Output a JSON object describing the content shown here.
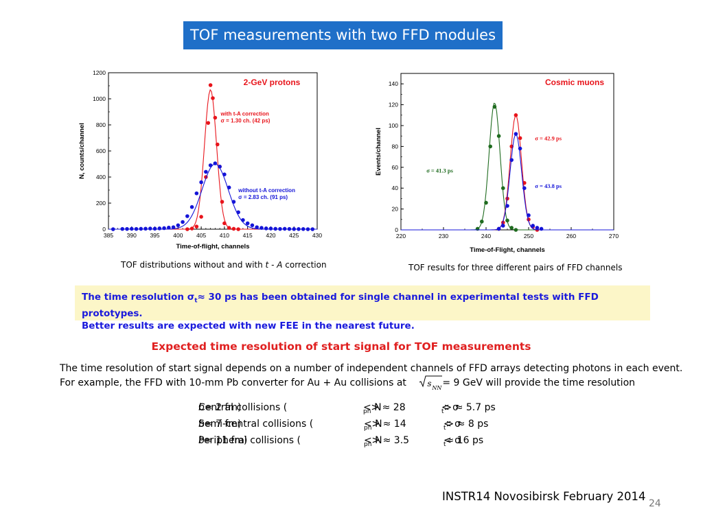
{
  "slide": {
    "title": "TOF measurements with two FFD modules",
    "caption_left_pre": "TOF distributions without and with ",
    "caption_left_t": "t",
    "caption_left_mid": " - ",
    "caption_left_a": "A",
    "caption_left_post": " correction",
    "caption_right": "TOF results for three different pairs of FFD channels",
    "note_line1_pre": "The time resolution σ",
    "note_sub": "t",
    "note_line1_post": "≈ 30 ps has been obtained for single channel in experimental tests with FFD prototypes.",
    "note_line2": "Better results are expected with new FEE in the nearest future.",
    "heading": "Expected time resolution of start signal for TOF measurements",
    "body_line1": "The time resolution of start signal depends on a number of independent channels of FFD arrays detecting photons in each event.",
    "body_line2_pre": "For example, the FFD with 10-mm Pb converter for Au + Au collisions at",
    "body_line2_post": "= 9 GeV will provide the time resolution",
    "sqrt_s": "s",
    "sqrt_sub": "NN",
    "cases": [
      {
        "name_pre": "Central collisions (",
        "b": "b",
        "name_post": " = 2 fm)",
        "nph": "< N",
        "nph_sub": "ph",
        "nph_val": " > ≈ 28",
        "sigma": "< σ",
        "sigma_sub": "t",
        "sigma_val": " > ≈ 5.7 ps"
      },
      {
        "name_pre": "Semi-central collisions (",
        "b": "b",
        "name_post": " = 7 fm)",
        "nph": "< N",
        "nph_sub": "ph",
        "nph_val": " > ≈ 14",
        "sigma": "< σ",
        "sigma_sub": "t",
        "sigma_val": " > ≈ 8 ps"
      },
      {
        "name_pre": "Peripheral collisions (",
        "b": "b",
        "name_post": " = 11 fm)",
        "nph": "< N",
        "nph_sub": "ph",
        "nph_val": " > ≈ 3.5",
        "sigma": "< σ",
        "sigma_sub": "t",
        "sigma_val": " ≈ 16 ps"
      }
    ],
    "footer": "INSTR14 Novosibirsk February 2014",
    "page_number": "24"
  },
  "chart_data": [
    {
      "type": "scatter",
      "title": "2-GeV protons",
      "xlabel": "Time-of-flight, channels",
      "ylabel": "N, counts/channel",
      "xlim": [
        385,
        430
      ],
      "ylim": [
        0,
        1200
      ],
      "xticks": [
        385,
        390,
        395,
        400,
        405,
        410,
        415,
        420,
        425,
        430
      ],
      "yticks": [
        0,
        200,
        400,
        600,
        800,
        1000,
        1200
      ],
      "grid": false,
      "series": [
        {
          "name": "with t-A correction",
          "color": "#e8141b",
          "fit": {
            "mean": 407.0,
            "sigma": 1.3,
            "amplitude": 1070
          },
          "x": [
            402,
            403,
            404,
            405,
            406,
            406.5,
            407,
            407.5,
            408,
            408.5,
            409,
            409.5,
            410,
            411,
            412,
            413
          ],
          "y": [
            0,
            5,
            20,
            95,
            400,
            815,
            1105,
            1005,
            855,
            650,
            480,
            210,
            45,
            10,
            3,
            0
          ]
        },
        {
          "name": "without t-A correction",
          "color": "#1414d8",
          "fit": {
            "mean": 408.0,
            "sigma": 2.83,
            "amplitude": 500
          },
          "x": [
            386,
            388,
            389,
            390,
            391,
            392,
            393,
            394,
            395,
            396,
            397,
            398,
            399,
            400,
            401,
            402,
            403,
            404,
            405,
            406,
            407,
            408,
            409,
            410,
            411,
            412,
            413,
            414,
            415,
            416,
            417,
            418,
            419,
            420,
            421,
            422,
            423,
            424,
            425,
            426,
            427,
            428,
            429
          ],
          "y": [
            0,
            2,
            2,
            3,
            2,
            3,
            4,
            5,
            4,
            6,
            8,
            12,
            15,
            30,
            55,
            100,
            170,
            275,
            360,
            440,
            490,
            505,
            480,
            420,
            320,
            210,
            130,
            70,
            45,
            30,
            15,
            10,
            6,
            5,
            3,
            2,
            3,
            2,
            1,
            1,
            1,
            0,
            0
          ]
        }
      ],
      "annotations": [
        {
          "text_lines": [
            "with t-A correction",
            "σ = 1.30 ch. (42 ps)"
          ],
          "color": "#e8141b",
          "x": 409.2,
          "y": 870
        },
        {
          "text_lines": [
            "without t-A correction",
            "σ = 2.83 ch. (91 ps)"
          ],
          "color": "#1414d8",
          "x": 413.0,
          "y": 285
        }
      ]
    },
    {
      "type": "scatter",
      "title": "Cosmic muons",
      "xlabel": "Time-of-Flight, channels",
      "ylabel": "Events/channel",
      "xlim": [
        220,
        270
      ],
      "ylim": [
        0,
        150
      ],
      "xticks": [
        220,
        230,
        240,
        250,
        260,
        270
      ],
      "yticks": [
        0,
        20,
        40,
        60,
        80,
        100,
        120,
        140
      ],
      "grid": false,
      "series": [
        {
          "name": "σ = 41.3 ps",
          "color": "#1f6b1f",
          "fit": {
            "mean": 242.0,
            "sigma": 1.28,
            "amplitude": 122
          },
          "x": [
            238,
            239,
            240,
            241,
            242,
            243,
            244,
            245,
            246,
            247
          ],
          "y": [
            1,
            8,
            26,
            80,
            118,
            90,
            40,
            9,
            2,
            0
          ]
        },
        {
          "name": "σ = 42.9 ps",
          "color": "#e8141b",
          "fit": {
            "mean": 247.0,
            "sigma": 1.33,
            "amplitude": 110
          },
          "x": [
            243,
            244,
            245,
            246,
            247,
            248,
            249,
            250,
            251,
            252
          ],
          "y": [
            1,
            7,
            30,
            80,
            110,
            88,
            45,
            10,
            3,
            0
          ]
        },
        {
          "name": "σ = 43.8 ps",
          "color": "#1414d8",
          "fit": {
            "mean": 247.0,
            "sigma": 1.36,
            "amplitude": 92
          },
          "x": [
            243,
            244,
            245,
            246,
            247,
            248,
            249,
            250,
            251,
            252,
            253
          ],
          "y": [
            1,
            4,
            23,
            67,
            92,
            78,
            40,
            14,
            4,
            2,
            1
          ]
        }
      ],
      "annotations": [
        {
          "text_lines": [
            "σ = 41.3 ps"
          ],
          "color": "#1f6b1f",
          "x": 226.0,
          "y": 55
        },
        {
          "text_lines": [
            "σ = 42.9 ps"
          ],
          "color": "#e8141b",
          "x": 251.5,
          "y": 86
        },
        {
          "text_lines": [
            "σ = 43.8 ps"
          ],
          "color": "#1414d8",
          "x": 251.5,
          "y": 40
        }
      ]
    }
  ]
}
